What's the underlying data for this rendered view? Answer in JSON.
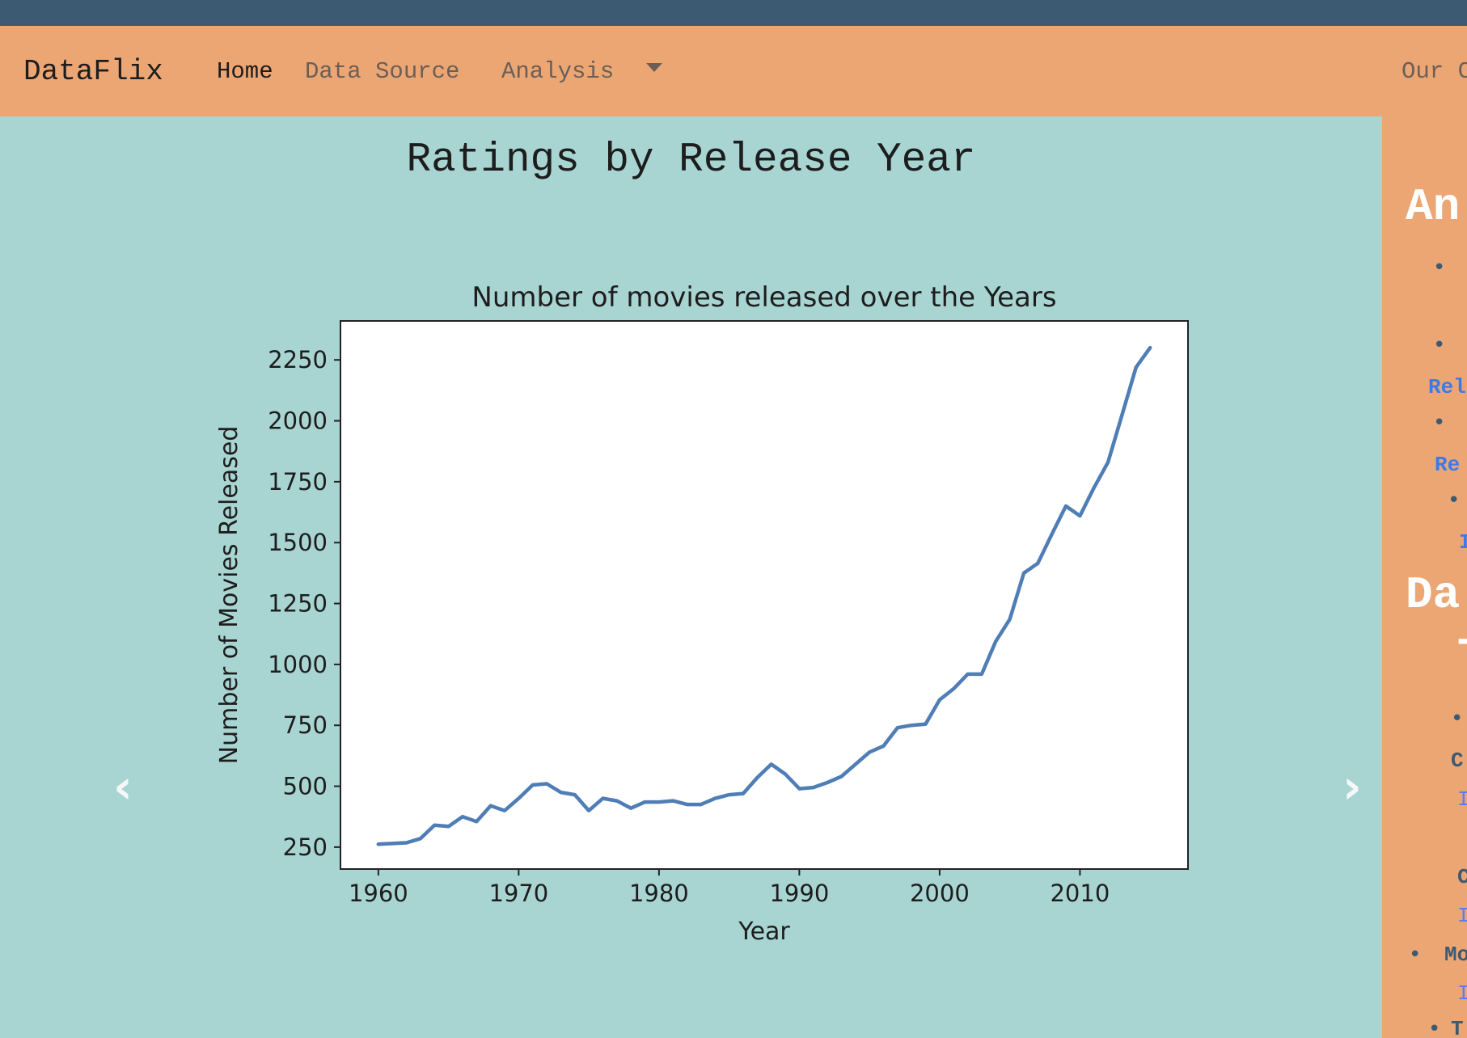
{
  "nav": {
    "brand": "DataFlix",
    "home": "Home",
    "data_source": "Data Source",
    "analysis": "Analysis",
    "ours": "Our C"
  },
  "slide": {
    "title": "Ratings by Release Year",
    "prev_icon": "chevron-left-icon",
    "next_icon": "chevron-right-icon",
    "prev_glyph": "‹",
    "next_glyph": "›"
  },
  "sidebar": {
    "heading1": "An",
    "link1": "Rel",
    "link2": "Re",
    "item4": "I",
    "heading2": "Da",
    "heading2b": "T",
    "label_c": "C",
    "item_i1": "I",
    "label_c2": "C",
    "item_i2": "I",
    "label_mo": "Mo",
    "item_i3": "I",
    "label_t": "T"
  },
  "colors": {
    "topstrip": "#3d5a73",
    "navbar": "#eca674",
    "content_bg": "#a8d5d2",
    "series_line": "#4f7db5"
  },
  "chart_data": {
    "type": "line",
    "title": "Number of movies released over the Years",
    "xlabel": "Year",
    "ylabel": "Number of Movies Released",
    "xlim": [
      1957.3,
      2017.7
    ],
    "ylim": [
      160,
      2410
    ],
    "xticks": [
      1960,
      1970,
      1980,
      1990,
      2000,
      2010
    ],
    "yticks": [
      250,
      500,
      750,
      1000,
      1250,
      1500,
      1750,
      2000,
      2250
    ],
    "grid": false,
    "x": [
      1960,
      1961,
      1962,
      1963,
      1964,
      1965,
      1966,
      1967,
      1968,
      1969,
      1970,
      1971,
      1972,
      1973,
      1974,
      1975,
      1976,
      1977,
      1978,
      1979,
      1980,
      1981,
      1982,
      1983,
      1984,
      1985,
      1986,
      1987,
      1988,
      1989,
      1990,
      1991,
      1992,
      1993,
      1994,
      1995,
      1996,
      1997,
      1998,
      1999,
      2000,
      2001,
      2002,
      2003,
      2004,
      2005,
      2006,
      2007,
      2008,
      2009,
      2010,
      2011,
      2012,
      2013,
      2014,
      2015
    ],
    "series": [
      {
        "values": [
          262,
          265,
          268,
          285,
          340,
          335,
          375,
          355,
          420,
          400,
          450,
          505,
          510,
          475,
          465,
          400,
          450,
          440,
          410,
          435,
          435,
          440,
          425,
          425,
          450,
          465,
          470,
          535,
          590,
          550,
          490,
          495,
          515,
          540,
          590,
          640,
          665,
          740,
          750,
          755,
          855,
          900,
          960,
          960,
          1095,
          1185,
          1375,
          1415,
          1535,
          1650,
          1610,
          1725,
          1830,
          2025,
          2220,
          2300
        ]
      }
    ]
  }
}
